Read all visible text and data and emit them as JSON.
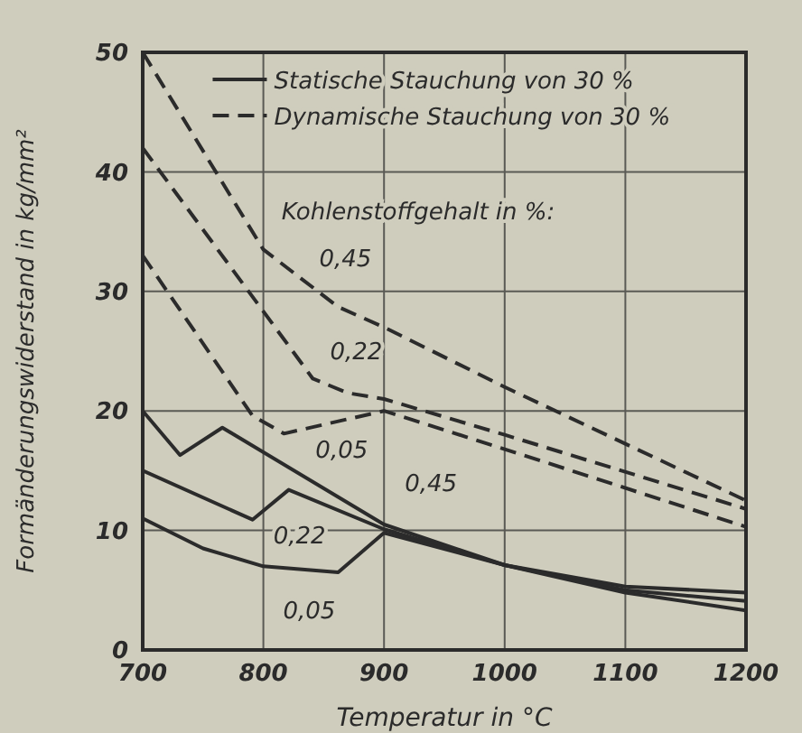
{
  "chart_data": {
    "type": "line",
    "xlabel": "Temperatur in °C",
    "ylabel": "Formänderungswiderstand in kg/mm²",
    "xlim": [
      700,
      1200
    ],
    "xticks": [
      700,
      800,
      900,
      1000,
      1100,
      1200
    ],
    "ylim": [
      0,
      50
    ],
    "yticks": [
      0,
      10,
      20,
      30,
      40,
      50
    ],
    "grid": true,
    "series": [
      {
        "name": "0,45",
        "color": "#2b2b2b",
        "line_style": "solid",
        "x": [
          700,
          731,
          766,
          900,
          1000,
          1100,
          1200
        ],
        "values": [
          20,
          16.3,
          18.6,
          10.5,
          7.1,
          5.3,
          4.8
        ]
      },
      {
        "name": "0,22",
        "color": "#2b2b2b",
        "line_style": "solid",
        "x": [
          700,
          791,
          821,
          900,
          1000,
          1100,
          1200
        ],
        "values": [
          15,
          10.9,
          13.4,
          10.1,
          7.1,
          5,
          4.1
        ]
      },
      {
        "name": "0,05",
        "color": "#2b2b2b",
        "line_style": "solid",
        "x": [
          700,
          750,
          800,
          862,
          900,
          1000,
          1100,
          1200
        ],
        "values": [
          11,
          8.5,
          7,
          6.5,
          9.8,
          7.1,
          4.8,
          3.3
        ]
      },
      {
        "name": "0,45",
        "color": "#2b2b2b",
        "line_style": "dashed",
        "x": [
          700,
          800,
          862,
          900,
          1000,
          1200
        ],
        "values": [
          50,
          33.5,
          28.7,
          27,
          22,
          12.5
        ]
      },
      {
        "name": "0,22",
        "color": "#2b2b2b",
        "line_style": "dashed",
        "x": [
          700,
          817,
          841,
          870,
          900,
          1000,
          1200
        ],
        "values": [
          42,
          26,
          22.7,
          21.5,
          21,
          18,
          11.8
        ]
      },
      {
        "name": "0,05",
        "color": "#2b2b2b",
        "line_style": "dashed",
        "x": [
          700,
          791,
          817,
          900,
          1000,
          1200
        ],
        "values": [
          33,
          19.6,
          18.1,
          20,
          16.8,
          10.3
        ]
      }
    ],
    "annotations": [
      "Statische Stauchung von 30 %",
      "Dynamische Stauchung von 30 %",
      "Kohlenstoffgehalt in %:"
    ]
  }
}
